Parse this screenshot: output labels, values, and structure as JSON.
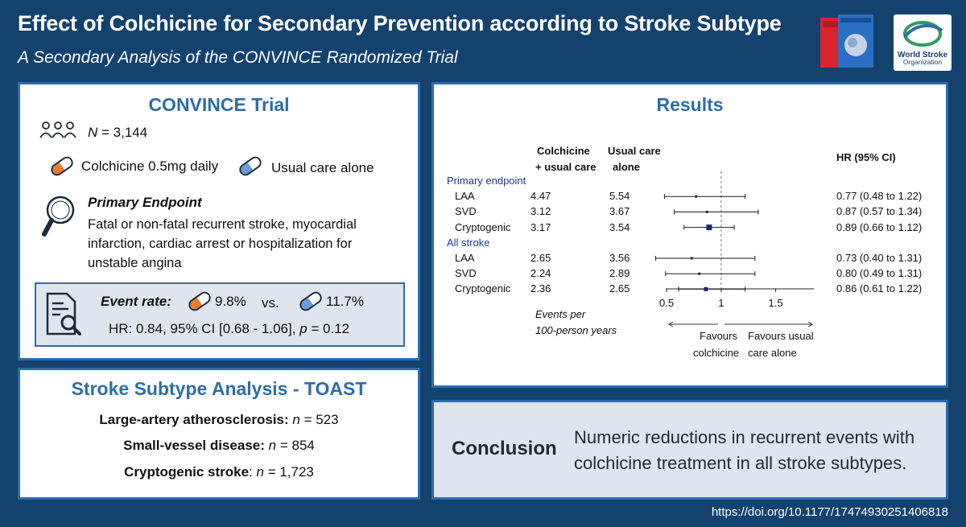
{
  "header": {
    "title": "Effect of Colchicine for Secondary Prevention according to Stroke Subtype",
    "subtitle": "A Secondary Analysis of the CONVINCE Randomized Trial",
    "org_logo_line1": "World Stroke",
    "org_logo_line2": "Organization"
  },
  "trial": {
    "heading": "CONVINCE Trial",
    "n_italic": "N",
    "n_value": " = 3,144",
    "arm1": "Colchicine 0.5mg daily",
    "arm2": "Usual care alone",
    "endpoint_heading": "Primary Endpoint",
    "endpoint_line1": "Fatal or non-fatal recurrent stroke, myocardial",
    "endpoint_line2": "infarction, cardiac arrest or hospitalization for",
    "endpoint_line3": "unstable angina",
    "event_rate_label": "Event rate:",
    "event_rate_colchicine": "9.8%",
    "vs": "vs.",
    "event_rate_usual": "11.7%",
    "hr_line_prefix": "HR: 0.84, 95% CI [0.68 - 1.06], ",
    "hr_line_p_italic": "p",
    "hr_line_suffix": " = 0.12"
  },
  "subtype": {
    "heading": "Stroke Subtype Analysis - TOAST",
    "rows": [
      {
        "label": "Large-artery atherosclerosis:",
        "n_italic": "n",
        "value": " = 523"
      },
      {
        "label": "Small-vessel disease:",
        "n_italic": "n",
        "value": " = 854"
      },
      {
        "label": "Cryptogenic stroke",
        "colon": ":",
        "n_italic": "n",
        "value": " = 1,723"
      }
    ]
  },
  "results": {
    "heading": "Results",
    "col_colchicine_1": "Colchicine",
    "col_colchicine_2": "+ usual care",
    "col_usual_1": "Usual care",
    "col_usual_2": "alone",
    "col_hr": "HR (95% CI)",
    "events_note_1": "Events per",
    "events_note_2": "100-person years",
    "favours_left_1": "Favours",
    "favours_left_2": "colchicine",
    "favours_right_1": "Favours usual",
    "favours_right_2": "care alone"
  },
  "chart_data": {
    "type": "forest",
    "x_ticks": [
      "0.5",
      "1",
      "1.5"
    ],
    "xlim": [
      0.3,
      1.85
    ],
    "reference_line": 1,
    "groups": [
      {
        "name": "Primary endpoint",
        "rows": [
          {
            "label": "LAA",
            "colchicine": "4.47",
            "usual": "5.54",
            "hr": 0.77,
            "lo": 0.48,
            "hi": 1.22,
            "hr_text": "0.77 (0.48 to 1.22)"
          },
          {
            "label": "SVD",
            "colchicine": "3.12",
            "usual": "3.67",
            "hr": 0.87,
            "lo": 0.57,
            "hi": 1.34,
            "hr_text": "0.87 (0.57 to 1.34)"
          },
          {
            "label": "Cryptogenic",
            "colchicine": "3.17",
            "usual": "3.54",
            "hr": 0.89,
            "lo": 0.66,
            "hi": 1.12,
            "hr_text": "0.89 (0.66 to 1.12)"
          }
        ]
      },
      {
        "name": "All stroke",
        "rows": [
          {
            "label": "LAA",
            "colchicine": "2.65",
            "usual": "3.56",
            "hr": 0.73,
            "lo": 0.4,
            "hi": 1.31,
            "hr_text": "0.73 (0.40 to 1.31)"
          },
          {
            "label": "SVD",
            "colchicine": "2.24",
            "usual": "2.89",
            "hr": 0.8,
            "lo": 0.49,
            "hi": 1.31,
            "hr_text": "0.80 (0.49 to 1.31)"
          },
          {
            "label": "Cryptogenic",
            "colchicine": "2.36",
            "usual": "2.65",
            "hr": 0.86,
            "lo": 0.61,
            "hi": 1.22,
            "hr_text": "0.86 (0.61 to 1.22)"
          }
        ]
      }
    ]
  },
  "conclusion": {
    "label": "Conclusion",
    "line1": "Numeric reductions in recurrent events with",
    "line2": "colchicine treatment in all stroke subtypes."
  },
  "footer": {
    "doi": "https://doi.org/10.1177/17474930251406818"
  },
  "colors": {
    "background": "#13426f",
    "accent": "#2d6da8",
    "pill_orange": "#f07a2a",
    "pill_blue": "#6b9bd8",
    "group_label": "#1f3a8a",
    "marker": "#1a2a6c"
  }
}
